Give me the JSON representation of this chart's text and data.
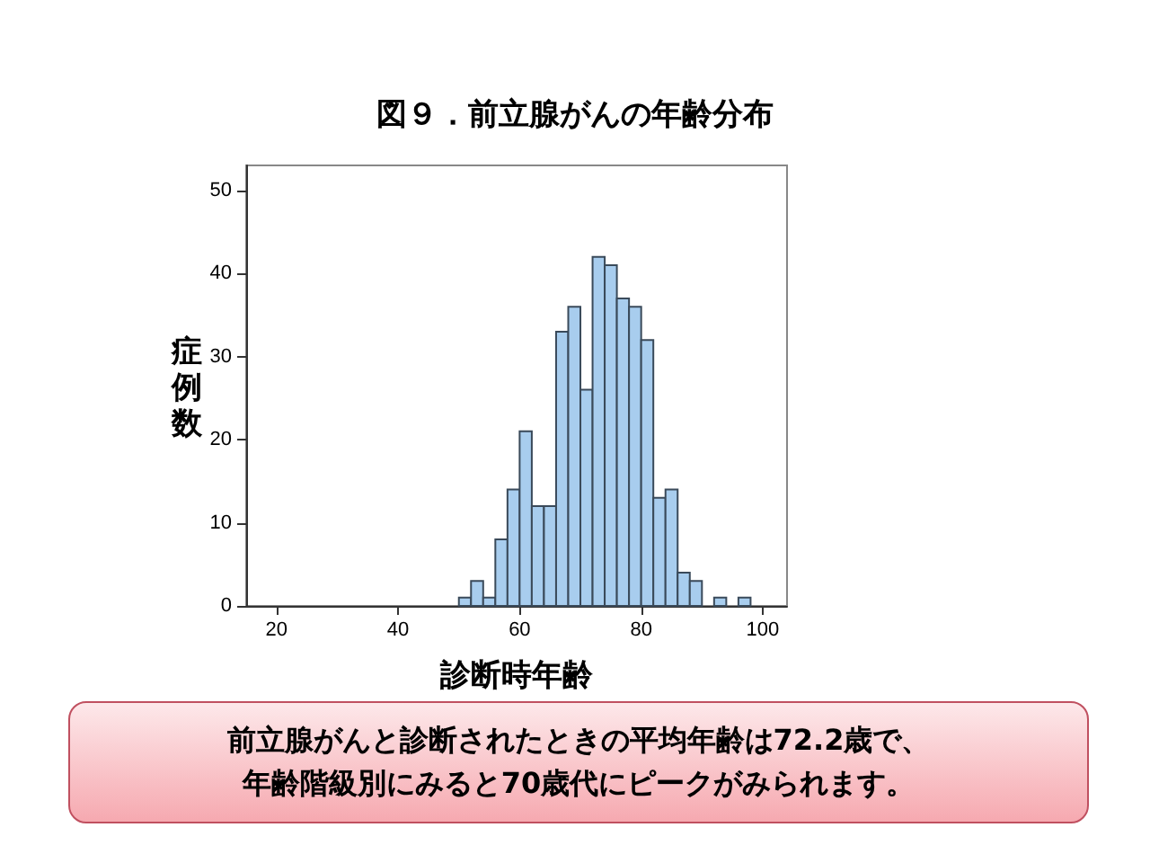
{
  "chart_data": {
    "type": "histogram",
    "title": "図９．前立腺がんの年齢分布",
    "xlabel": "診断時年齢",
    "ylabel": "症例数",
    "bins": [
      50,
      52,
      54,
      56,
      58,
      60,
      62,
      64,
      66,
      68,
      70,
      72,
      74,
      76,
      78,
      80,
      82,
      84,
      86,
      88,
      90,
      92,
      94,
      96,
      98
    ],
    "values": [
      1,
      3,
      1,
      8,
      14,
      21,
      12,
      12,
      33,
      36,
      26,
      42,
      41,
      37,
      36,
      32,
      13,
      14,
      4,
      3,
      0,
      1,
      0,
      1
    ],
    "color": "#a8cdee",
    "xlim": [
      15,
      104
    ],
    "xticks": [
      20,
      40,
      60,
      80,
      100
    ],
    "ylim": [
      0,
      53
    ],
    "yticks": [
      0,
      10,
      20,
      30,
      40,
      50
    ],
    "grid": false,
    "annotations": [
      "前立腺がんと診断されたときの平均年齢は72.2歳で、",
      "年齢階級別にみると70歳代にピークがみられます。"
    ]
  }
}
